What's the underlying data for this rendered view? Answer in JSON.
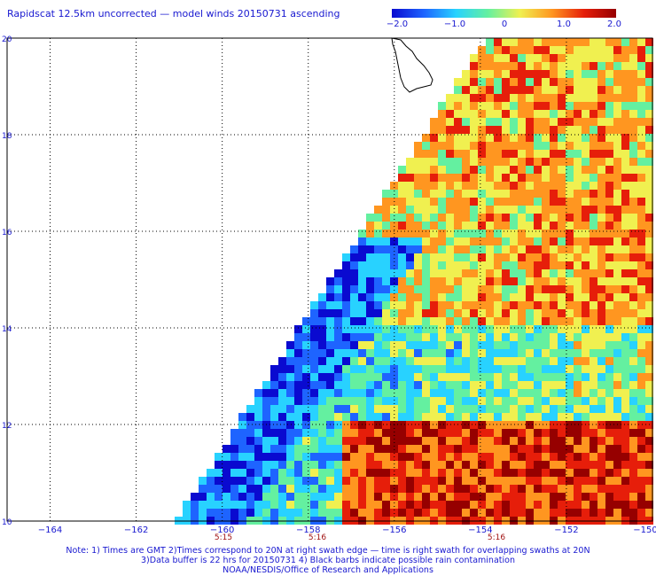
{
  "title": "Rapidscat 12.5km uncorrected — model winds 20150731 ascending",
  "colorbar": {
    "ticks": [
      "−2.0",
      "−1.0",
      "0",
      "1.0",
      "2.0"
    ],
    "tick_values": [
      -2.0,
      -1.0,
      0,
      1.0,
      2.0
    ],
    "colors": [
      "#0a0ad0",
      "#1e64ff",
      "#28d2ff",
      "#64f0a0",
      "#f0f050",
      "#ff9620",
      "#e61e0a",
      "#960000"
    ]
  },
  "axes": {
    "lon_ticks": [
      "−164",
      "−162",
      "−160",
      "−158",
      "−156",
      "−154",
      "−152",
      "−150"
    ],
    "lat_ticks": [
      "10",
      "12",
      "14",
      "16",
      "18",
      "20"
    ],
    "time_labels": [
      "5:15",
      "5:16",
      "5:16"
    ],
    "lon_range": [
      -165,
      -150
    ],
    "lat_range": [
      10,
      20
    ]
  },
  "notes": [
    "Note: 1) Times are GMT 2)Times correspond to 20N at right swath edge — time is right swath for overlapping swaths at 20N",
    "3)Data buffer is 22 hrs for 20150731 4) Black barbs indicate possible rain contamination",
    "NOAA/NESDIS/Office of Research and Applications"
  ]
}
